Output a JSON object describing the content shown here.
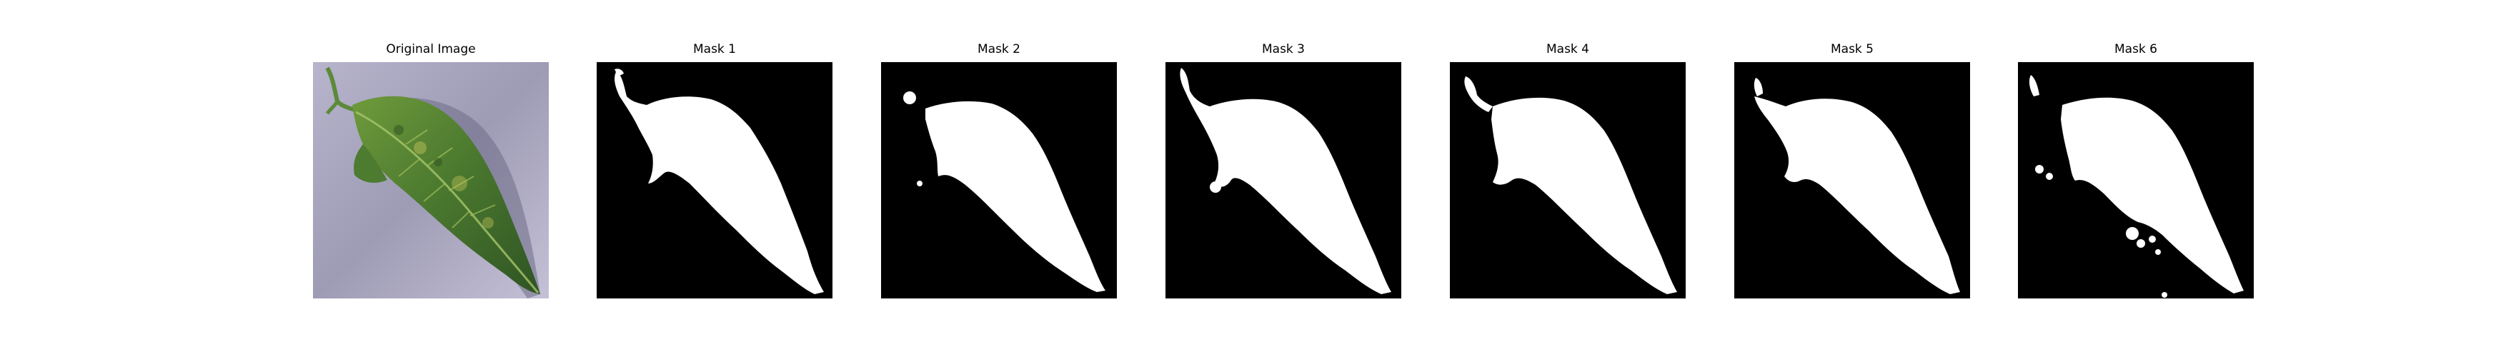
{
  "figure": {
    "panels": [
      {
        "title": "Original Image",
        "kind": "photo"
      },
      {
        "title": "Mask 1",
        "kind": "mask"
      },
      {
        "title": "Mask 2",
        "kind": "mask"
      },
      {
        "title": "Mask 3",
        "kind": "mask"
      },
      {
        "title": "Mask 4",
        "kind": "mask"
      },
      {
        "title": "Mask 5",
        "kind": "mask"
      },
      {
        "title": "Mask 6",
        "kind": "mask"
      }
    ]
  },
  "colors": {
    "mask_background": "#000000",
    "mask_foreground": "#ffffff",
    "photo_background": "#a8a5bf",
    "leaf_dark": "#3f6b2f",
    "leaf_light": "#8fae4e"
  }
}
